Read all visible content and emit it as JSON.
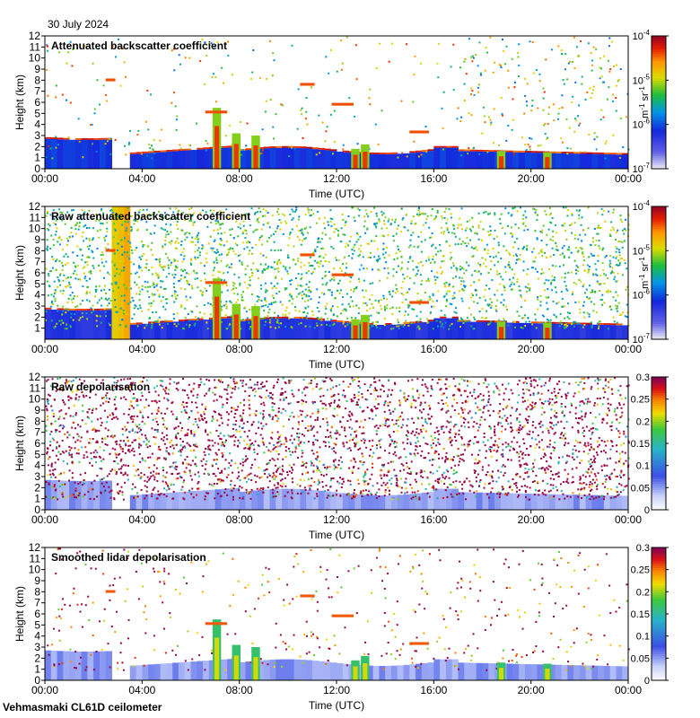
{
  "date_label": "30 July 2024",
  "instrument_label": "Vehmasmaki CL61D ceilometer",
  "chart_data": [
    {
      "type": "heatmap",
      "title": "Attenuated backscatter coefficient",
      "xlabel": "Time (UTC)",
      "ylabel": "Height (km)",
      "x_ticks": [
        "00:00",
        "04:00",
        "08:00",
        "12:00",
        "16:00",
        "20:00",
        "00:00"
      ],
      "xlim_hours": [
        0,
        24
      ],
      "y_ticks": [
        "0",
        "1",
        "2",
        "3",
        "4",
        "5",
        "6",
        "7",
        "8",
        "9",
        "10",
        "11",
        "12"
      ],
      "ylim": [
        0,
        12
      ],
      "colorbar": {
        "scale": "log",
        "label_main": "m",
        "label_sup1": "-1",
        "label_mid": " sr",
        "label_sup2": "-1",
        "ticks": [
          {
            "base": "10",
            "exp": "-4"
          },
          {
            "base": "10",
            "exp": "-5"
          },
          {
            "base": "10",
            "exp": "-6"
          },
          {
            "base": "10",
            "exp": "-7"
          }
        ],
        "range": [
          1e-07,
          0.0001
        ]
      }
    },
    {
      "type": "heatmap",
      "title": "Raw attenuated backscatter coefficient",
      "xlabel": "Time (UTC)",
      "ylabel": "Height (km)",
      "x_ticks": [
        "00:00",
        "04:00",
        "08:00",
        "12:00",
        "16:00",
        "20:00",
        "00:00"
      ],
      "xlim_hours": [
        0,
        24
      ],
      "y_ticks": [
        "1",
        "2",
        "3",
        "4",
        "5",
        "6",
        "7",
        "8",
        "9",
        "10",
        "11",
        "12"
      ],
      "ylim": [
        0,
        12
      ],
      "colorbar": {
        "scale": "log",
        "label_main": "m",
        "label_sup1": "-1",
        "label_mid": " sr",
        "label_sup2": "-1",
        "ticks": [
          {
            "base": "10",
            "exp": "-4"
          },
          {
            "base": "10",
            "exp": "-5"
          },
          {
            "base": "10",
            "exp": "-6"
          },
          {
            "base": "10",
            "exp": "-7"
          }
        ],
        "range": [
          1e-07,
          0.0001
        ]
      }
    },
    {
      "type": "heatmap",
      "title": "Raw depolarisation",
      "xlabel": "Time (UTC)",
      "ylabel": "Height (km)",
      "x_ticks": [
        "00:00",
        "04:00",
        "08:00",
        "12:00",
        "16:00",
        "20:00",
        "00:00"
      ],
      "xlim_hours": [
        0,
        24
      ],
      "y_ticks": [
        "0",
        "1",
        "2",
        "3",
        "4",
        "5",
        "6",
        "7",
        "8",
        "9",
        "10",
        "11",
        "12"
      ],
      "ylim": [
        0,
        12
      ],
      "colorbar": {
        "scale": "linear",
        "ticks": [
          "0.3",
          "0.25",
          "0.2",
          "0.15",
          "0.1",
          "0.05",
          "0"
        ],
        "range": [
          0,
          0.3
        ]
      }
    },
    {
      "type": "heatmap",
      "title": "Smoothed lidar depolarisation",
      "xlabel": "Time (UTC)",
      "ylabel": "Height (km)",
      "x_ticks": [
        "00:00",
        "04:00",
        "08:00",
        "12:00",
        "16:00",
        "20:00",
        "00:00"
      ],
      "xlim_hours": [
        0,
        24
      ],
      "y_ticks": [
        "0",
        "1",
        "2",
        "3",
        "4",
        "5",
        "6",
        "7",
        "8",
        "9",
        "10",
        "11",
        "12"
      ],
      "ylim": [
        0,
        12
      ],
      "colorbar": {
        "scale": "linear",
        "ticks": [
          "0.3",
          "0.25",
          "0.2",
          "0.15",
          "0.1",
          "0.05",
          "0"
        ],
        "range": [
          0,
          0.3
        ]
      }
    }
  ]
}
